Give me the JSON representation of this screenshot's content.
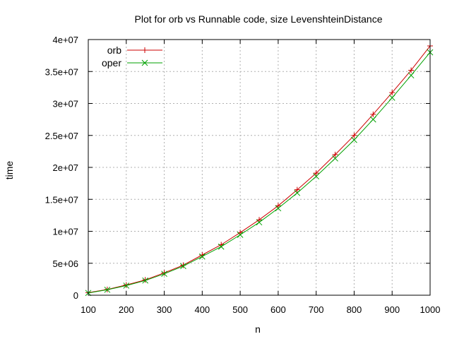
{
  "chart_data": {
    "type": "line",
    "title": "Plot for orb vs Runnable code, size LevenshteinDistance",
    "xlabel": "n",
    "ylabel": "time",
    "xlim": [
      100,
      1000
    ],
    "ylim": [
      0,
      40000000
    ],
    "x_ticks": [
      100,
      200,
      300,
      400,
      500,
      600,
      700,
      800,
      900,
      1000
    ],
    "x_tick_labels": [
      "100",
      "200",
      "300",
      "400",
      "500",
      "600",
      "700",
      "800",
      "900",
      "1000"
    ],
    "y_ticks": [
      0,
      5000000,
      10000000,
      15000000,
      20000000,
      25000000,
      30000000,
      35000000,
      40000000
    ],
    "y_tick_labels": [
      "0",
      "5e+06",
      "1e+07",
      "1.5e+07",
      "2e+07",
      "2.5e+07",
      "3e+07",
      "3.5e+07",
      "4e+07"
    ],
    "grid": true,
    "legend_position": "top-left",
    "x": [
      100,
      150,
      200,
      250,
      300,
      350,
      400,
      450,
      500,
      550,
      600,
      650,
      700,
      750,
      800,
      850,
      900,
      950,
      1000
    ],
    "series": [
      {
        "name": "orb",
        "color": "#cc0000",
        "marker": "plus",
        "values": [
          400000,
          900000,
          1600000,
          2400000,
          3500000,
          4700000,
          6300000,
          7900000,
          9800000,
          11800000,
          14000000,
          16500000,
          19100000,
          22000000,
          25000000,
          28300000,
          31700000,
          35200000,
          39000000
        ]
      },
      {
        "name": "oper",
        "color": "#00a000",
        "marker": "cross",
        "values": [
          350000,
          850000,
          1500000,
          2300000,
          3350000,
          4550000,
          6050000,
          7600000,
          9450000,
          11400000,
          13600000,
          16000000,
          18600000,
          21400000,
          24300000,
          27500000,
          30900000,
          34400000,
          38000000
        ]
      }
    ]
  }
}
